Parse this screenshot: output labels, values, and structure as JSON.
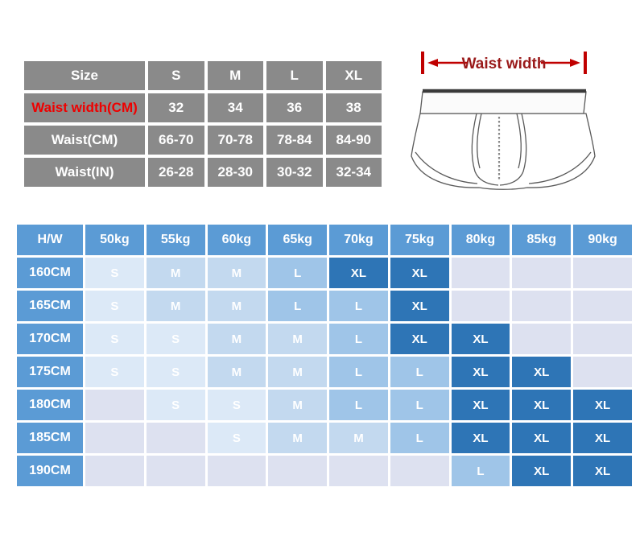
{
  "diagram": {
    "label": "Waist width"
  },
  "chart_data": [
    {
      "type": "table",
      "name": "size_spec_table",
      "rows": [
        {
          "label": "Size",
          "values": [
            "S",
            "M",
            "L",
            "XL"
          ]
        },
        {
          "label": "Waist width(CM)",
          "label_style": "red",
          "values": [
            "32",
            "34",
            "36",
            "38"
          ]
        },
        {
          "label": "Waist(CM)",
          "values": [
            "66-70",
            "70-78",
            "78-84",
            "84-90"
          ]
        },
        {
          "label": "Waist(IN)",
          "values": [
            "26-28",
            "28-30",
            "30-32",
            "32-34"
          ]
        }
      ]
    },
    {
      "type": "heatmap",
      "name": "height_weight_size_matrix",
      "corner_label": "H/W",
      "col_headers": [
        "50kg",
        "55kg",
        "60kg",
        "65kg",
        "70kg",
        "75kg",
        "80kg",
        "85kg",
        "90kg"
      ],
      "row_headers": [
        "160CM",
        "165CM",
        "170CM",
        "175CM",
        "180CM",
        "185CM",
        "190CM"
      ],
      "cells": [
        [
          "S",
          "M",
          "M",
          "L",
          "XL",
          "XL",
          "",
          "",
          ""
        ],
        [
          "S",
          "M",
          "M",
          "L",
          "L",
          "XL",
          "",
          "",
          ""
        ],
        [
          "S",
          "S",
          "M",
          "M",
          "L",
          "XL",
          "XL",
          "",
          ""
        ],
        [
          "S",
          "S",
          "M",
          "M",
          "L",
          "L",
          "XL",
          "XL",
          ""
        ],
        [
          "",
          "S",
          "S",
          "M",
          "L",
          "L",
          "XL",
          "XL",
          "XL"
        ],
        [
          "",
          "",
          "S",
          "M",
          "M",
          "L",
          "XL",
          "XL",
          "XL"
        ],
        [
          "",
          "",
          "",
          "",
          "",
          "",
          "L",
          "XL",
          "XL"
        ]
      ],
      "legend_colors": {
        "header_blue": "#5b9bd5",
        "S": "#dce9f7",
        "M": "#c3d9ef",
        "L": "#9fc5e8",
        "XL": "#2e75b6",
        "empty": "#dde1f0"
      }
    }
  ],
  "colors": {
    "spec_header_gray": "#8a8a8a",
    "spec_red_label": "#ee0000",
    "measure_arrow_red": "#c00000",
    "measure_text_maroon": "#9a1a1a"
  }
}
